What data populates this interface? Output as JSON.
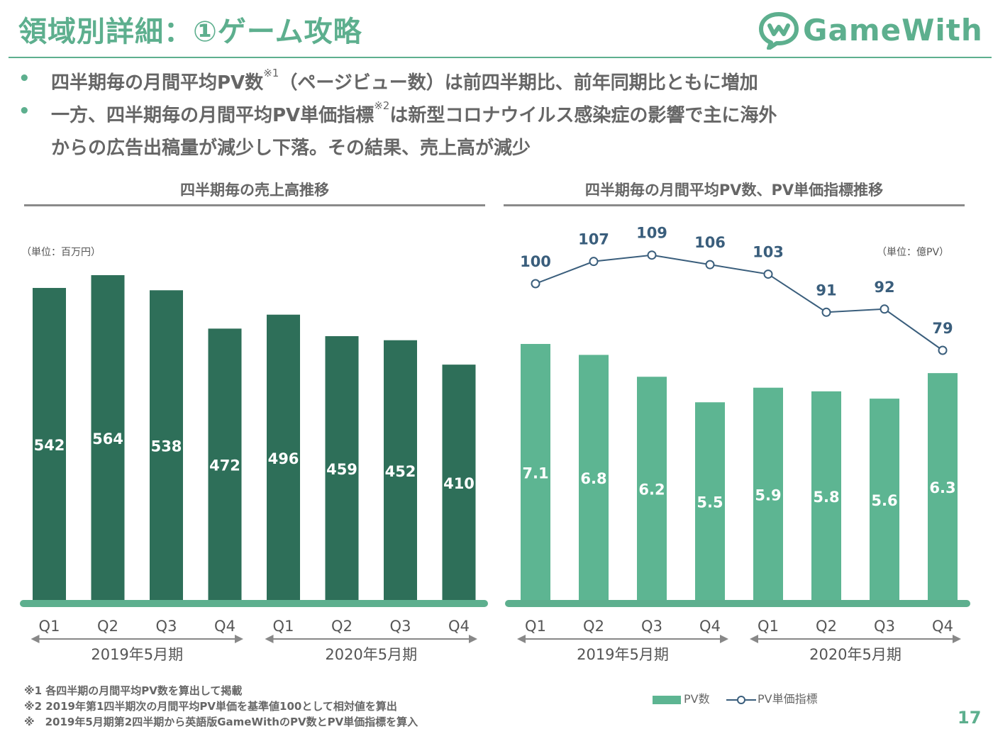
{
  "header": {
    "title": "領域別詳細：①ゲーム攻略",
    "logo_text": "GameWith"
  },
  "bullets": [
    {
      "text": "四半期毎の月間平均PV数",
      "note": "※1",
      "rest": "（ページビュー数）は前四半期比、前年同期比ともに増加"
    },
    {
      "text": "一方、四半期毎の月間平均PV単価指標",
      "note": "※2",
      "rest": "は新型コロナウイルス感染症の影響で主に海外"
    },
    {
      "text": "からの広告出稿量が減少し下落。その結果、売上高が減少",
      "note": "",
      "rest": ""
    }
  ],
  "colors": {
    "brand": "#5daf8e",
    "bar_dark": "#2e6f59",
    "bar_light": "#5db592",
    "line": "#3a5e7c"
  },
  "chart_data": [
    {
      "type": "bar",
      "title": "四半期毎の売上高推移",
      "unit": "（単位：百万円）",
      "categories": [
        "Q1",
        "Q2",
        "Q3",
        "Q4",
        "Q1",
        "Q2",
        "Q3",
        "Q4"
      ],
      "groups": [
        {
          "label": "2019年5月期",
          "from": 0,
          "to": 3
        },
        {
          "label": "2020年5月期",
          "from": 4,
          "to": 7
        }
      ],
      "series": [
        {
          "name": "売上高",
          "values": [
            542,
            564,
            538,
            472,
            496,
            459,
            452,
            410
          ]
        }
      ],
      "ylim": [
        0,
        600
      ]
    },
    {
      "type": "bar+line",
      "title": "四半期毎の月間平均PV数、PV単価指標推移",
      "unit": "（単位：億PV）",
      "categories": [
        "Q1",
        "Q2",
        "Q3",
        "Q4",
        "Q1",
        "Q2",
        "Q3",
        "Q4"
      ],
      "groups": [
        {
          "label": "2019年5月期",
          "from": 0,
          "to": 3
        },
        {
          "label": "2020年5月期",
          "from": 4,
          "to": 7
        }
      ],
      "series": [
        {
          "name": "PV数",
          "type": "bar",
          "values": [
            7.1,
            6.8,
            6.2,
            5.5,
            5.9,
            5.8,
            5.6,
            6.3
          ]
        },
        {
          "name": "PV単価指標",
          "type": "line",
          "values": [
            100,
            107,
            109,
            106,
            103,
            91,
            92,
            79
          ]
        }
      ],
      "bar_ylim": [
        0,
        8
      ],
      "line_ylim": [
        40,
        115
      ]
    }
  ],
  "legend": {
    "pv": "PV数",
    "index": "PV単価指標"
  },
  "footnotes": [
    "※1 各四半期の月間平均PV数を算出して掲載",
    "※2 2019年第1四半期次の月間平均PV単価を基準値100として相対値を算出",
    "※　2019年5月期第2四半期から英語版GameWithのPV数とPV単価指標を算入"
  ],
  "page_number": "17"
}
